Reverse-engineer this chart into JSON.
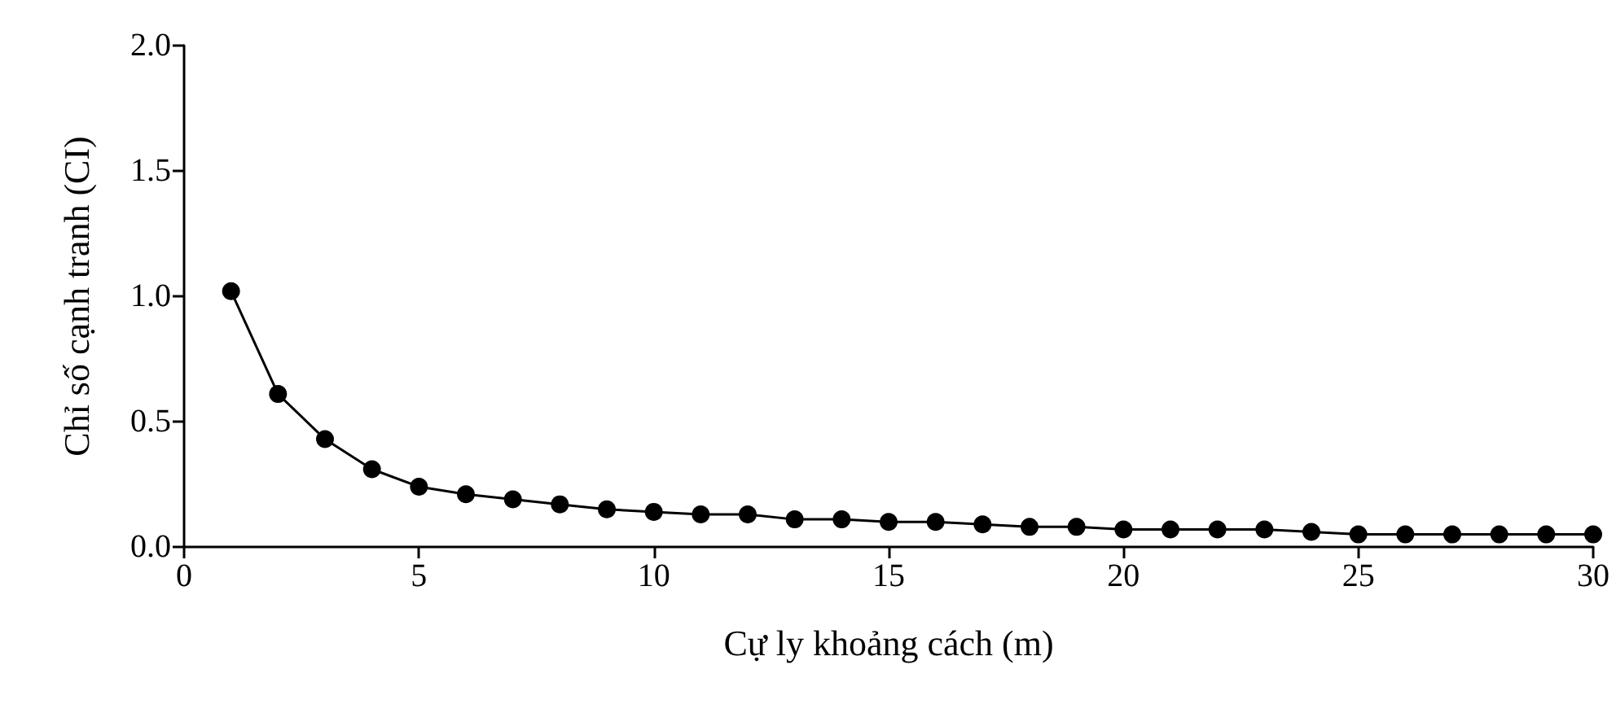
{
  "chart_data": {
    "type": "line",
    "xlabel": "Cự ly khoảng cách (m)",
    "ylabel": "Chỉ số cạnh tranh (CI)",
    "x": [
      1,
      2,
      3,
      4,
      5,
      6,
      7,
      8,
      9,
      10,
      11,
      12,
      13,
      14,
      15,
      16,
      17,
      18,
      19,
      20,
      21,
      22,
      23,
      24,
      25,
      26,
      27,
      28,
      29,
      30
    ],
    "series": [
      {
        "color": "#000000",
        "values": [
          1.02,
          0.61,
          0.43,
          0.31,
          0.24,
          0.21,
          0.19,
          0.17,
          0.15,
          0.14,
          0.13,
          0.13,
          0.11,
          0.11,
          0.1,
          0.1,
          0.09,
          0.08,
          0.08,
          0.07,
          0.07,
          0.07,
          0.07,
          0.06,
          0.05,
          0.05,
          0.05,
          0.05,
          0.05,
          0.05
        ]
      }
    ],
    "xlim": [
      0,
      30
    ],
    "xticks": [
      0,
      5,
      10,
      15,
      20,
      25,
      30
    ],
    "ylim": [
      0,
      2
    ],
    "yticks": [
      {
        "value": 0,
        "label": "0.0"
      },
      {
        "value": 0.5,
        "label": "0.5"
      },
      {
        "value": 1,
        "label": "1.0"
      },
      {
        "value": 1.5,
        "label": "1.5"
      },
      {
        "value": 2,
        "label": "2.0"
      }
    ],
    "grid": false,
    "marker": "circle",
    "line_style": "solid"
  }
}
